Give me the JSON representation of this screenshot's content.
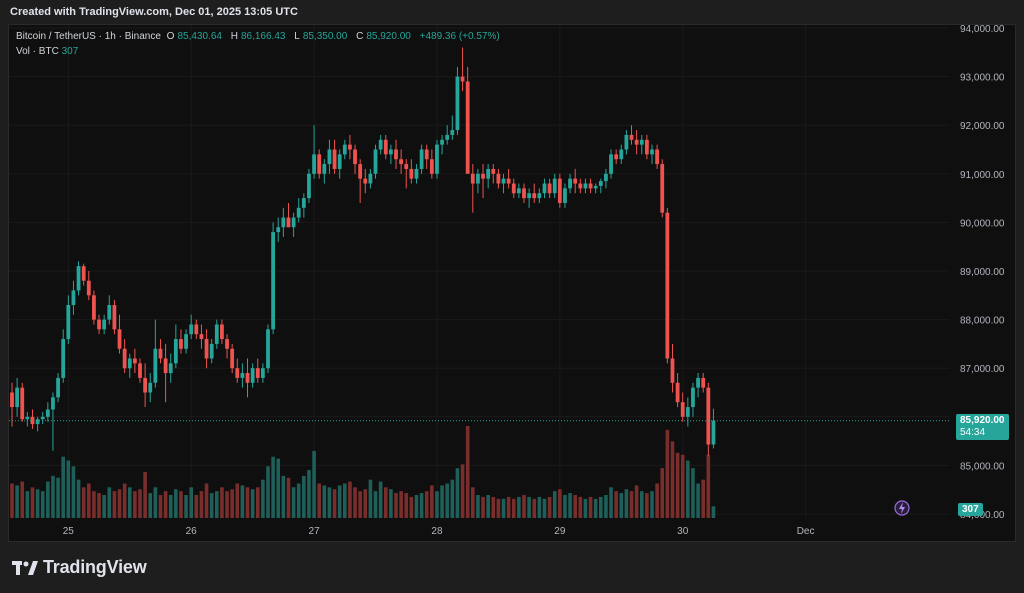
{
  "header": {
    "created": "Created with TradingView.com, Dec 01, 2025 13:05 UTC"
  },
  "legend": {
    "symbol": "Bitcoin / TetherUS · 1h · Binance",
    "o_label": "O",
    "o": "85,430.64",
    "h_label": "H",
    "h": "86,166.43",
    "l_label": "L",
    "l": "85,350.00",
    "c_label": "C",
    "c": "85,920.00",
    "change": "+489.36 (+0.57%)"
  },
  "vol_legend": {
    "label": "Vol · BTC",
    "value": "307"
  },
  "price_badge": {
    "price": "85,920.00",
    "countdown": "54:34"
  },
  "vol_badge": "307",
  "footer": {
    "brand": "TradingView"
  },
  "colors": {
    "up": "#26a69a",
    "down": "#ef5350",
    "bg": "#0f0f0f",
    "grid": "#1c1c1c"
  },
  "chart_data": {
    "type": "candlestick",
    "title": "Bitcoin / TetherUS · 1h · Binance",
    "y_ticks": [
      "94,000.00",
      "93,000.00",
      "92,000.00",
      "91,000.00",
      "90,000.00",
      "89,000.00",
      "88,000.00",
      "87,000.00",
      "86,000.00",
      "85,000.00",
      "84,000.00"
    ],
    "ylim": [
      84000,
      94000
    ],
    "x_ticks": [
      {
        "label": "25",
        "index": 11
      },
      {
        "label": "26",
        "index": 35
      },
      {
        "label": "27",
        "index": 59
      },
      {
        "label": "28",
        "index": 83
      },
      {
        "label": "29",
        "index": 107
      },
      {
        "label": "30",
        "index": 131
      },
      {
        "label": "Dec",
        "index": 155
      }
    ],
    "last_price": 85920,
    "ohlcv": [
      [
        86500,
        86700,
        85800,
        86200,
        900
      ],
      [
        86200,
        86800,
        86000,
        86600,
        850
      ],
      [
        86600,
        86700,
        85900,
        85950,
        950
      ],
      [
        85950,
        86100,
        85800,
        86000,
        700
      ],
      [
        86000,
        86150,
        85750,
        85850,
        800
      ],
      [
        85850,
        86000,
        85700,
        85950,
        750
      ],
      [
        85950,
        86100,
        85850,
        86000,
        700
      ],
      [
        86000,
        86300,
        85900,
        86150,
        950
      ],
      [
        86150,
        86500,
        85300,
        86400,
        1100
      ],
      [
        86400,
        86900,
        86300,
        86800,
        1050
      ],
      [
        86800,
        87800,
        86700,
        87600,
        1600
      ],
      [
        87600,
        88500,
        87500,
        88300,
        1500
      ],
      [
        88300,
        88800,
        88100,
        88600,
        1350
      ],
      [
        88600,
        89200,
        88500,
        89100,
        1000
      ],
      [
        89100,
        89150,
        88700,
        88800,
        800
      ],
      [
        88800,
        89000,
        88400,
        88500,
        900
      ],
      [
        88500,
        88600,
        87900,
        88000,
        700
      ],
      [
        88000,
        88100,
        87700,
        87800,
        650
      ],
      [
        87800,
        88100,
        87700,
        88000,
        600
      ],
      [
        88000,
        88500,
        87900,
        88300,
        800
      ],
      [
        88300,
        88400,
        87700,
        87800,
        700
      ],
      [
        87800,
        88100,
        87300,
        87400,
        750
      ],
      [
        87400,
        87600,
        86900,
        87000,
        900
      ],
      [
        87000,
        87300,
        86800,
        87200,
        800
      ],
      [
        87200,
        87400,
        86900,
        87100,
        700
      ],
      [
        87100,
        87200,
        86700,
        86800,
        750
      ],
      [
        86800,
        87100,
        86200,
        86500,
        1200
      ],
      [
        86500,
        86900,
        86300,
        86700,
        650
      ],
      [
        86700,
        88000,
        86600,
        87400,
        800
      ],
      [
        87400,
        87600,
        87100,
        87200,
        600
      ],
      [
        87200,
        87500,
        86300,
        86900,
        700
      ],
      [
        86900,
        87300,
        86700,
        87100,
        600
      ],
      [
        87100,
        87900,
        87000,
        87600,
        750
      ],
      [
        87600,
        87800,
        87300,
        87400,
        700
      ],
      [
        87400,
        87800,
        87300,
        87700,
        600
      ],
      [
        87700,
        88100,
        87600,
        87900,
        800
      ],
      [
        87900,
        88000,
        87600,
        87700,
        600
      ],
      [
        87700,
        87900,
        87400,
        87600,
        700
      ],
      [
        87600,
        87800,
        87000,
        87200,
        900
      ],
      [
        87200,
        87600,
        87100,
        87500,
        650
      ],
      [
        87500,
        88000,
        87400,
        87900,
        700
      ],
      [
        87900,
        88000,
        87500,
        87600,
        800
      ],
      [
        87600,
        87700,
        87200,
        87400,
        700
      ],
      [
        87400,
        87500,
        86900,
        87000,
        750
      ],
      [
        87000,
        87200,
        86700,
        86800,
        900
      ],
      [
        86800,
        87100,
        86600,
        86900,
        850
      ],
      [
        86900,
        87200,
        86400,
        86700,
        800
      ],
      [
        86700,
        87100,
        86600,
        87000,
        750
      ],
      [
        87000,
        87200,
        86700,
        86800,
        800
      ],
      [
        86800,
        87100,
        86700,
        87000,
        1000
      ],
      [
        87000,
        87900,
        86900,
        87800,
        1350
      ],
      [
        87800,
        90000,
        87700,
        89800,
        1600
      ],
      [
        89800,
        90100,
        89600,
        89900,
        1550
      ],
      [
        89900,
        90300,
        89700,
        90100,
        1100
      ],
      [
        90100,
        90400,
        89900,
        89900,
        1050
      ],
      [
        89900,
        90200,
        89700,
        90100,
        800
      ],
      [
        90100,
        90500,
        90000,
        90300,
        900
      ],
      [
        90300,
        90600,
        90100,
        90500,
        1100
      ],
      [
        90500,
        91100,
        90400,
        91000,
        1250
      ],
      [
        91000,
        92000,
        90900,
        91400,
        1750
      ],
      [
        91400,
        91500,
        90900,
        91000,
        900
      ],
      [
        91000,
        91300,
        90800,
        91200,
        850
      ],
      [
        91200,
        91700,
        91000,
        91500,
        800
      ],
      [
        91500,
        91700,
        91000,
        91100,
        750
      ],
      [
        91100,
        91500,
        90900,
        91400,
        850
      ],
      [
        91400,
        91700,
        91300,
        91600,
        900
      ],
      [
        91600,
        91800,
        91300,
        91500,
        950
      ],
      [
        91500,
        91600,
        91000,
        91200,
        800
      ],
      [
        91200,
        91300,
        90400,
        90900,
        700
      ],
      [
        90900,
        91100,
        90600,
        90800,
        750
      ],
      [
        90800,
        91100,
        90700,
        91000,
        1000
      ],
      [
        91000,
        91600,
        90900,
        91500,
        700
      ],
      [
        91500,
        91800,
        91400,
        91700,
        950
      ],
      [
        91700,
        91800,
        91300,
        91400,
        800
      ],
      [
        91400,
        91600,
        91200,
        91500,
        750
      ],
      [
        91500,
        91700,
        91100,
        91300,
        650
      ],
      [
        91300,
        91500,
        91000,
        91200,
        700
      ],
      [
        91200,
        91300,
        90700,
        91100,
        650
      ],
      [
        91100,
        91300,
        90800,
        90900,
        550
      ],
      [
        90900,
        91200,
        90800,
        91100,
        600
      ],
      [
        91100,
        91600,
        91000,
        91500,
        650
      ],
      [
        91500,
        91600,
        91100,
        91300,
        700
      ],
      [
        91300,
        91500,
        90900,
        91000,
        850
      ],
      [
        91000,
        91700,
        90900,
        91600,
        700
      ],
      [
        91600,
        91800,
        91400,
        91700,
        850
      ],
      [
        91700,
        92000,
        91600,
        91800,
        900
      ],
      [
        91800,
        92200,
        91700,
        91900,
        1000
      ],
      [
        91900,
        93200,
        91800,
        93000,
        1300
      ],
      [
        93000,
        93600,
        92700,
        92900,
        1400
      ],
      [
        92900,
        93200,
        91100,
        91000,
        2400
      ],
      [
        91000,
        91200,
        90200,
        90800,
        800
      ],
      [
        90800,
        91100,
        90600,
        91000,
        600
      ],
      [
        91000,
        91200,
        90500,
        90900,
        550
      ],
      [
        90900,
        91200,
        90700,
        91100,
        600
      ],
      [
        91100,
        91200,
        90800,
        91000,
        550
      ],
      [
        91000,
        91100,
        90700,
        90800,
        500
      ],
      [
        90800,
        91000,
        90600,
        90900,
        500
      ],
      [
        90900,
        91100,
        90700,
        90800,
        550
      ],
      [
        90800,
        90900,
        90500,
        90600,
        500
      ],
      [
        90600,
        90800,
        90500,
        90700,
        550
      ],
      [
        90700,
        90800,
        90400,
        90500,
        600
      ],
      [
        90500,
        90700,
        90300,
        90600,
        550
      ],
      [
        90600,
        90800,
        90400,
        90500,
        500
      ],
      [
        90500,
        90700,
        90400,
        90600,
        550
      ],
      [
        90600,
        90900,
        90500,
        90800,
        500
      ],
      [
        90800,
        90900,
        90500,
        90600,
        550
      ],
      [
        90600,
        91000,
        90500,
        90900,
        700
      ],
      [
        90900,
        91000,
        90300,
        90400,
        750
      ],
      [
        90400,
        90800,
        90300,
        90700,
        600
      ],
      [
        90700,
        91000,
        90600,
        90900,
        650
      ],
      [
        90900,
        91100,
        90600,
        90800,
        600
      ],
      [
        90800,
        90900,
        90600,
        90700,
        550
      ],
      [
        90700,
        90900,
        90600,
        90800,
        500
      ],
      [
        90800,
        90900,
        90600,
        90700,
        550
      ],
      [
        90700,
        90800,
        90600,
        90750,
        500
      ],
      [
        90750,
        90900,
        90600,
        90850,
        550
      ],
      [
        90850,
        91100,
        90700,
        91000,
        600
      ],
      [
        91000,
        91500,
        90900,
        91400,
        800
      ],
      [
        91400,
        91500,
        91200,
        91300,
        700
      ],
      [
        91300,
        91600,
        91200,
        91500,
        650
      ],
      [
        91500,
        91900,
        91400,
        91800,
        750
      ],
      [
        91800,
        92000,
        91600,
        91700,
        700
      ],
      [
        91700,
        91900,
        91400,
        91600,
        850
      ],
      [
        91600,
        91800,
        91400,
        91700,
        700
      ],
      [
        91700,
        91800,
        91300,
        91400,
        650
      ],
      [
        91400,
        91600,
        91200,
        91500,
        700
      ],
      [
        91500,
        91600,
        91100,
        91200,
        900
      ],
      [
        91200,
        91300,
        90100,
        90200,
        1300
      ],
      [
        90200,
        90300,
        87100,
        87200,
        2300
      ],
      [
        87200,
        87500,
        86500,
        86700,
        2000
      ],
      [
        86700,
        86900,
        86200,
        86300,
        1700
      ],
      [
        86300,
        86500,
        85900,
        86000,
        1650
      ],
      [
        86000,
        86400,
        85800,
        86200,
        1500
      ],
      [
        86200,
        86700,
        86000,
        86600,
        1300
      ],
      [
        86600,
        86900,
        86400,
        86800,
        900
      ],
      [
        86800,
        86900,
        86500,
        86600,
        1000
      ],
      [
        86600,
        86700,
        85200,
        85430,
        1650
      ],
      [
        85430,
        86166,
        85350,
        85920,
        307
      ]
    ]
  }
}
